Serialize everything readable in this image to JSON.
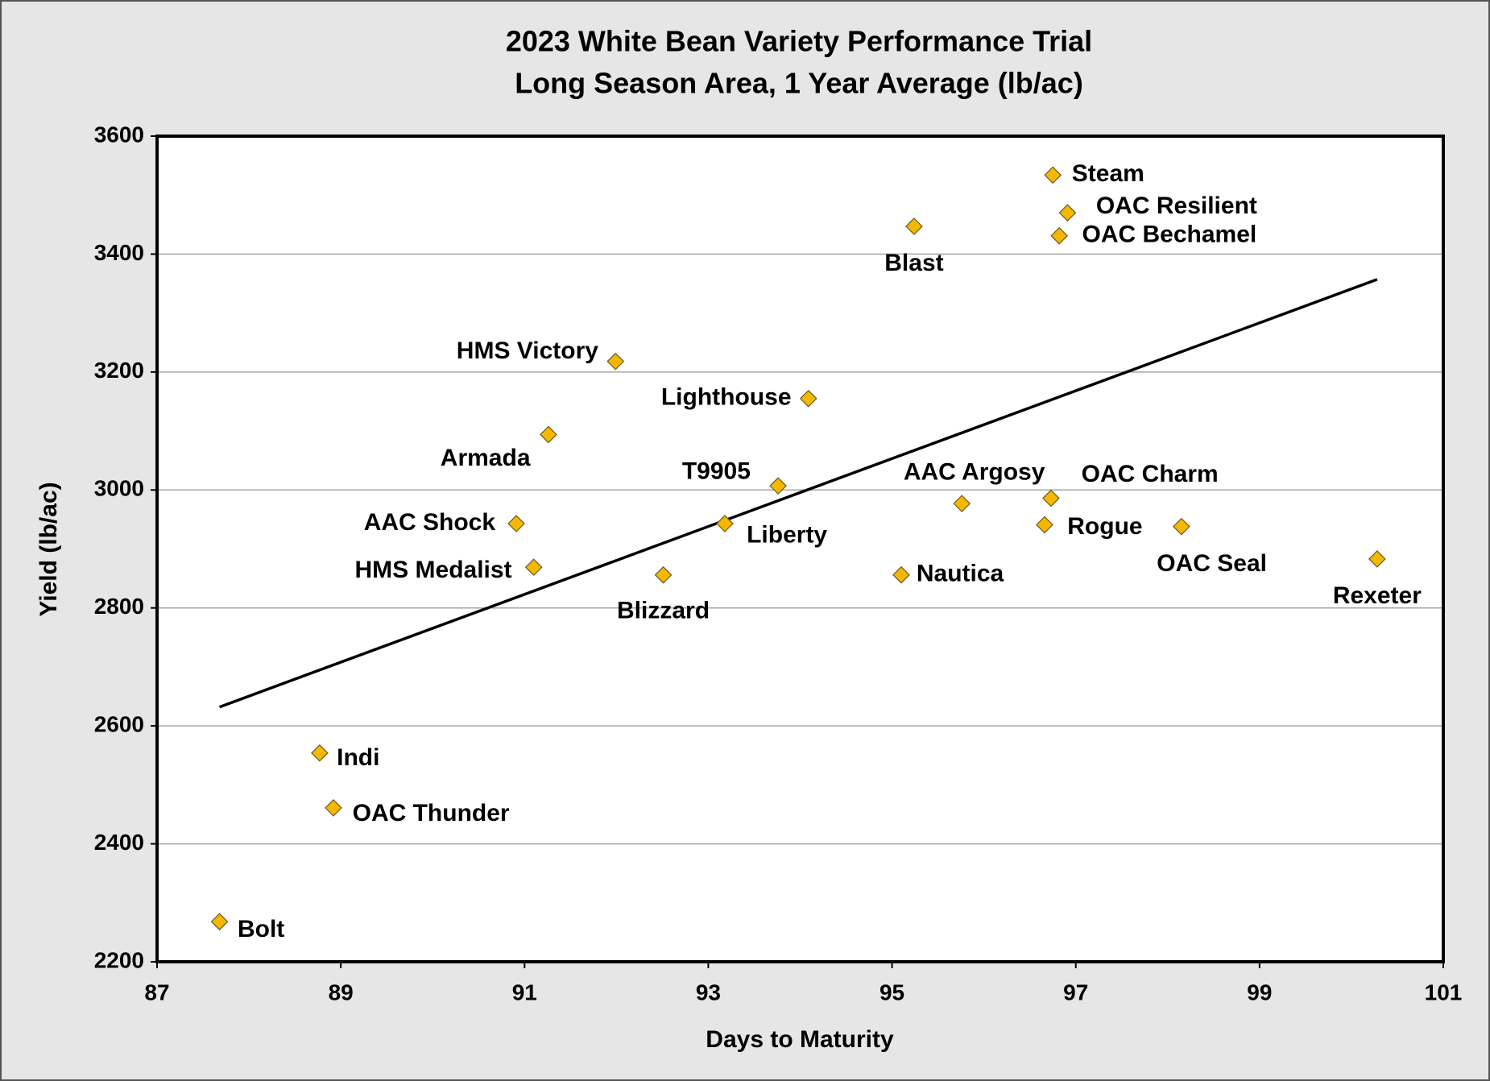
{
  "chart_data": {
    "type": "scatter",
    "title": "2023 White Bean Variety Performance Trial",
    "subtitle": "Long Season Area, 1 Year Average (lb/ac)",
    "x_label": "Days to Maturity",
    "y_label": "Yield (lb/ac)",
    "labels": [
      "Steam",
      "OAC Resilient",
      "OAC Bechamel",
      "Blast",
      "HMS Victory",
      "Lighthouse",
      "Armada",
      "T9905",
      "AAC Argosy",
      "OAC Charm",
      "AAC Shock",
      "Liberty",
      "Rogue",
      "OAC Seal",
      "HMS Medalist",
      "Blizzard",
      "Nautica",
      "Rexeter",
      "Indi",
      "OAC Thunder",
      "Bolt"
    ],
    "x": [
      96.75,
      96.91,
      96.82,
      95.24,
      91.99,
      94.09,
      91.26,
      93.76,
      95.76,
      96.73,
      90.91,
      93.18,
      96.66,
      98.15,
      91.1,
      92.51,
      95.1,
      100.28,
      88.77,
      88.92,
      87.68
    ],
    "y": [
      3534,
      3470,
      3431,
      3447,
      3218,
      3155,
      3094,
      3007,
      2977,
      2986,
      2943,
      2943,
      2941,
      2938,
      2869,
      2856,
      2856,
      2883,
      2554,
      2461,
      2268
    ],
    "color": "#f5b800",
    "trendline": {
      "x": [
        87.68,
        100.28
      ],
      "y": [
        2632,
        3357
      ]
    },
    "xlim": [
      87,
      101
    ],
    "xticks": [
      87,
      89,
      91,
      93,
      95,
      97,
      99,
      101
    ],
    "ylim": [
      2200,
      3600
    ],
    "yticks": [
      2200,
      2400,
      2600,
      2800,
      3000,
      3200,
      3400,
      3600
    ],
    "grid": true
  }
}
